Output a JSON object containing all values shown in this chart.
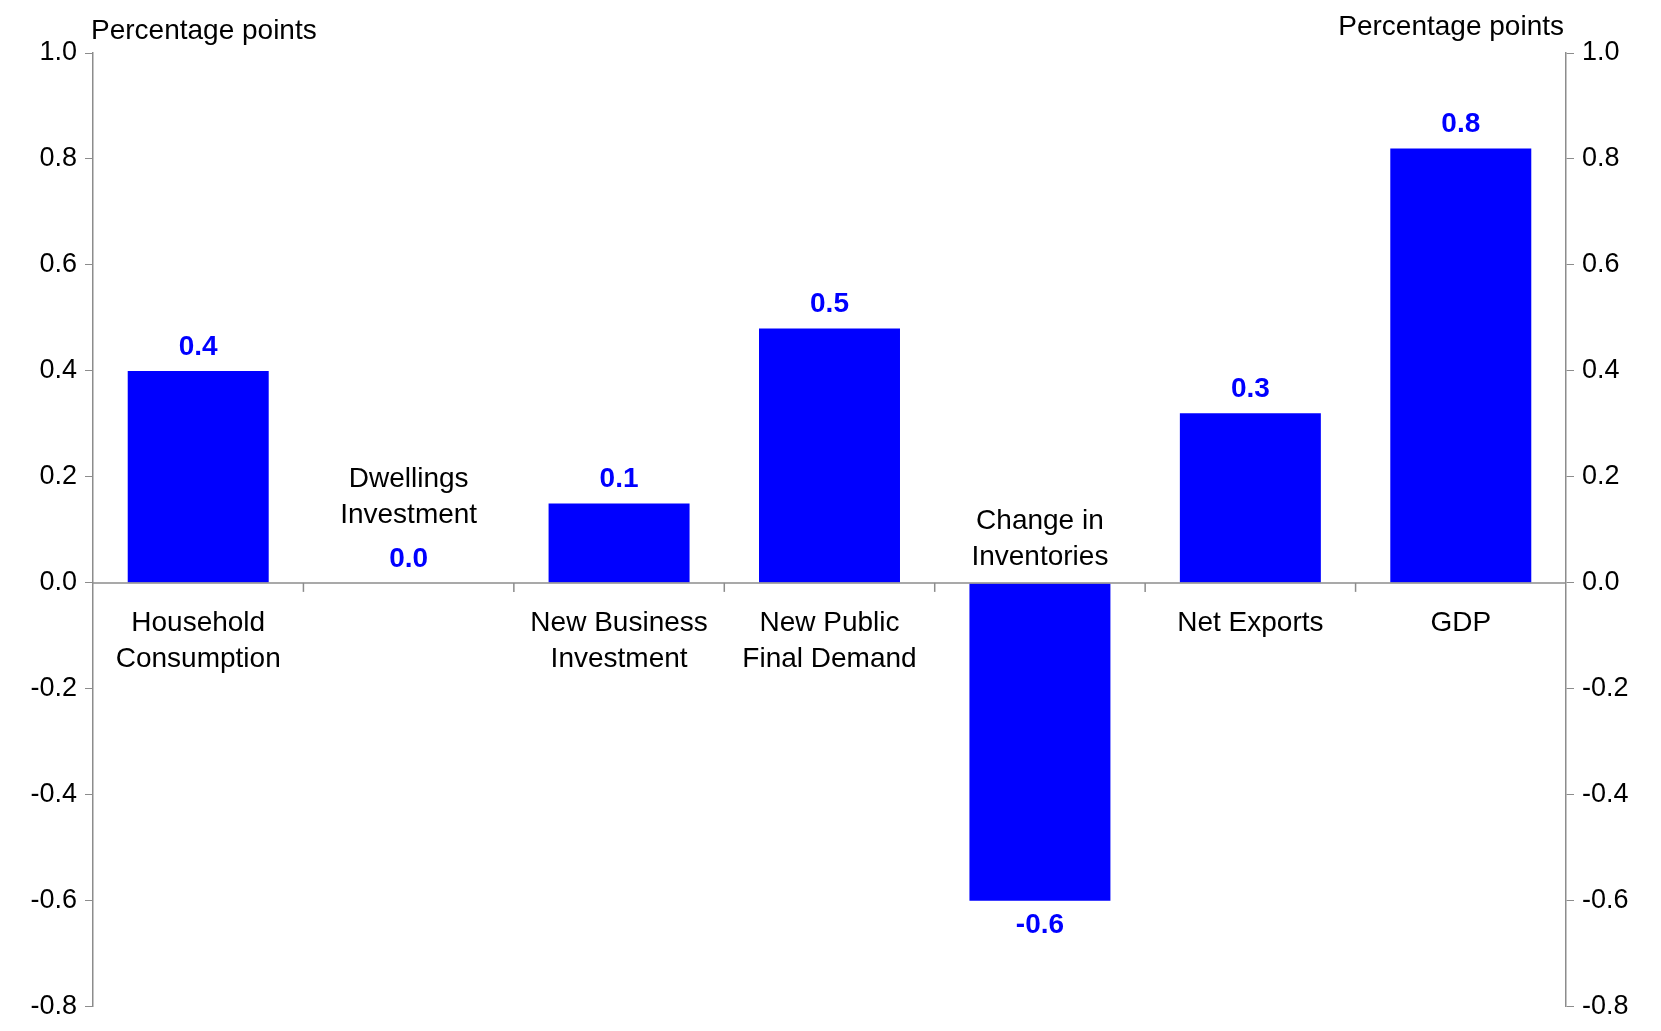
{
  "chart_data": {
    "type": "bar",
    "categories": [
      "Household Consumption",
      "Dwellings Investment",
      "New Business Investment",
      "New Public Final Demand",
      "Change in Inventories",
      "Net Exports",
      "GDP"
    ],
    "values": [
      0.4,
      0.0,
      0.15,
      0.48,
      -0.6,
      0.32,
      0.82
    ],
    "value_labels": [
      "0.4",
      "0.0",
      "0.1",
      "0.5",
      "-0.6",
      "0.3",
      "0.8"
    ],
    "color": "#0000ff",
    "ylabel": "Percentage points",
    "y2label": "Percentage points",
    "ylim": [
      -0.8,
      1.0
    ],
    "yticks": [
      -0.8,
      -0.6,
      -0.4,
      -0.2,
      {
        "value": 0,
        "label": "0.0"
      },
      0.2,
      0.4,
      0.6,
      0.8,
      {
        "value": 1,
        "label": "1.0"
      }
    ],
    "y2lim": [
      -0.8,
      1.0
    ],
    "y2ticks": [
      -0.8,
      -0.6,
      -0.4,
      -0.2,
      {
        "value": 0,
        "label": "0.0"
      },
      0.2,
      0.4,
      0.6,
      0.8,
      {
        "value": 1,
        "label": "1.0"
      }
    ],
    "grid": false,
    "legend": false
  }
}
